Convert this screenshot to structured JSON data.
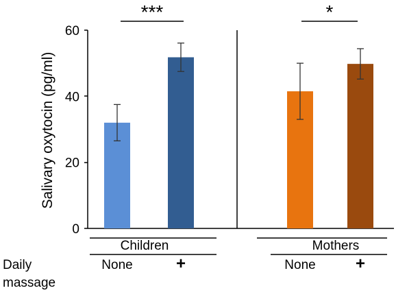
{
  "chart_data": {
    "type": "bar",
    "ylabel": "Salivary oxytocin (pg/ml)",
    "ylim": [
      0,
      60
    ],
    "yticks": [
      "0",
      "20",
      "40",
      "60"
    ],
    "categories": [
      "None",
      "+",
      "None",
      "+"
    ],
    "row_label": "Daily massage",
    "groups": [
      {
        "label": "Children",
        "significance": "***"
      },
      {
        "label": "Mothers",
        "significance": "*"
      }
    ],
    "values": [
      32.0,
      51.8,
      41.5,
      49.8
    ],
    "errors": [
      5.5,
      4.3,
      8.5,
      4.6
    ],
    "colors": [
      "#5b8fd6",
      "#325d91",
      "#e8740f",
      "#9a4a0e"
    ],
    "grid": false
  }
}
